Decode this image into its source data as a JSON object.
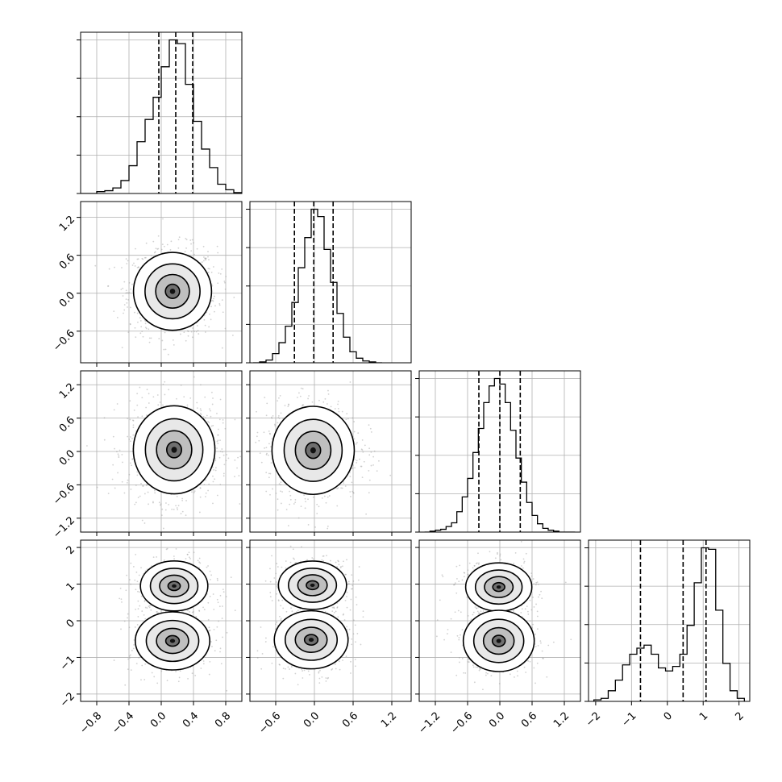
{
  "chart_data": {
    "type": "corner",
    "dimensions": 4,
    "grid": true,
    "parameters": [
      {
        "xlim": [
          -1.0,
          1.0
        ],
        "xticks": [
          "−0.8",
          "−0.4",
          "0.0",
          "0.4",
          "0.8"
        ],
        "xtick_values": [
          -0.8,
          -0.4,
          0.0,
          0.4,
          0.8
        ],
        "quantiles": [
          -0.03,
          0.18,
          0.39
        ],
        "hist_centers": [
          -0.95,
          -0.85,
          -0.75,
          -0.65,
          -0.55,
          -0.45,
          -0.35,
          -0.25,
          -0.15,
          -0.05,
          0.05,
          0.15,
          0.25,
          0.35,
          0.45,
          0.55,
          0.65,
          0.75,
          0.85,
          0.95
        ],
        "hist_values": [
          0,
          0,
          2,
          3,
          6,
          14,
          30,
          56,
          80,
          104,
          137,
          166,
          162,
          118,
          78,
          48,
          28,
          10,
          4,
          1
        ]
      },
      {
        "xlim": [
          -1.0,
          1.5
        ],
        "xticks": [
          "−0.6",
          "0.0",
          "0.6",
          "1.2"
        ],
        "xtick_values": [
          -0.6,
          0.0,
          0.6,
          1.2
        ],
        "yticks": [
          "1.2",
          "0.6",
          "0.0",
          "−0.6"
        ],
        "ytick_values": [
          1.2,
          0.6,
          0.0,
          -0.6
        ],
        "ylim": [
          -1.1,
          1.45
        ],
        "quantiles": [
          -0.31,
          -0.01,
          0.29
        ],
        "hist_centers": [
          -0.9,
          -0.8,
          -0.7,
          -0.6,
          -0.5,
          -0.4,
          -0.3,
          -0.2,
          -0.1,
          0.0,
          0.1,
          0.2,
          0.3,
          0.4,
          0.5,
          0.6,
          0.7,
          0.8,
          0.9,
          1.0
        ],
        "hist_values": [
          0,
          1,
          3,
          10,
          22,
          40,
          66,
          104,
          137,
          168,
          160,
          124,
          88,
          54,
          28,
          12,
          5,
          2,
          1,
          0
        ]
      },
      {
        "xlim": [
          -1.5,
          1.5
        ],
        "xticks": [
          "−1.2",
          "−0.6",
          "0.0",
          "0.6",
          "1.2"
        ],
        "xtick_values": [
          -1.2,
          -0.6,
          0.0,
          0.6,
          1.2
        ],
        "yticks": [
          "1.2",
          "0.6",
          "0.0",
          "−0.6",
          "−1.2"
        ],
        "ytick_values": [
          1.2,
          0.6,
          0.0,
          -0.6,
          -1.2
        ],
        "ylim": [
          -1.45,
          1.45
        ],
        "quantiles": [
          -0.39,
          0.0,
          0.38
        ],
        "hist_centers": [
          -1.35,
          -1.25,
          -1.15,
          -1.05,
          -0.95,
          -0.85,
          -0.75,
          -0.65,
          -0.55,
          -0.45,
          -0.35,
          -0.25,
          -0.15,
          -0.05,
          0.05,
          0.15,
          0.25,
          0.35,
          0.45,
          0.55,
          0.65,
          0.75,
          0.85,
          0.95,
          1.05,
          1.15,
          1.25,
          1.35
        ],
        "hist_values": [
          0,
          1,
          2,
          3,
          6,
          10,
          22,
          38,
          58,
          86,
          112,
          140,
          158,
          166,
          160,
          140,
          110,
          80,
          54,
          32,
          18,
          9,
          4,
          2,
          1,
          0,
          0,
          0
        ]
      },
      {
        "xlim": [
          -2.2,
          2.3
        ],
        "xticks": [
          "−2",
          "−1",
          "0",
          "1",
          "2"
        ],
        "xtick_values": [
          -2,
          -1,
          0,
          1,
          2
        ],
        "yticks": [
          "2",
          "1",
          "0",
          "−1",
          "−2"
        ],
        "ytick_values": [
          2,
          1,
          0,
          -1,
          -2
        ],
        "ylim": [
          -2.2,
          2.2
        ],
        "quantiles": [
          -0.75,
          0.44,
          1.08
        ],
        "hist_centers": [
          -1.95,
          -1.75,
          -1.55,
          -1.35,
          -1.15,
          -0.95,
          -0.75,
          -0.55,
          -0.35,
          -0.15,
          0.05,
          0.25,
          0.45,
          0.65,
          0.85,
          1.05,
          1.25,
          1.45,
          1.65,
          1.85,
          2.05
        ],
        "hist_values": [
          2,
          4,
          14,
          28,
          48,
          62,
          70,
          74,
          62,
          44,
          40,
          46,
          62,
          100,
          156,
          202,
          200,
          120,
          50,
          14,
          4
        ]
      }
    ],
    "pair_modes": {
      "1_0": {
        "center": [
          0.14,
          0.03
        ],
        "sigma": [
          0.22,
          0.28
        ]
      },
      "2_0": {
        "center": [
          0.16,
          0.03
        ],
        "sigma": [
          0.23,
          0.36
        ]
      },
      "2_1": {
        "center": [
          -0.02,
          0.02
        ],
        "sigma": [
          0.29,
          0.36
        ]
      },
      "3_0": [
        {
          "center": [
            0.16,
            0.95
          ],
          "sigma": [
            0.19,
            0.31
          ]
        },
        {
          "center": [
            0.14,
            -0.55
          ],
          "sigma": [
            0.21,
            0.36
          ]
        }
      ],
      "3_1": [
        {
          "center": [
            -0.03,
            0.97
          ],
          "sigma": [
            0.24,
            0.3
          ]
        },
        {
          "center": [
            -0.05,
            -0.52
          ],
          "sigma": [
            0.26,
            0.36
          ]
        }
      ],
      "3_2": [
        {
          "center": [
            -0.02,
            0.92
          ],
          "sigma": [
            0.28,
            0.3
          ]
        },
        {
          "center": [
            -0.02,
            -0.55
          ],
          "sigma": [
            0.3,
            0.38
          ]
        }
      ]
    }
  }
}
